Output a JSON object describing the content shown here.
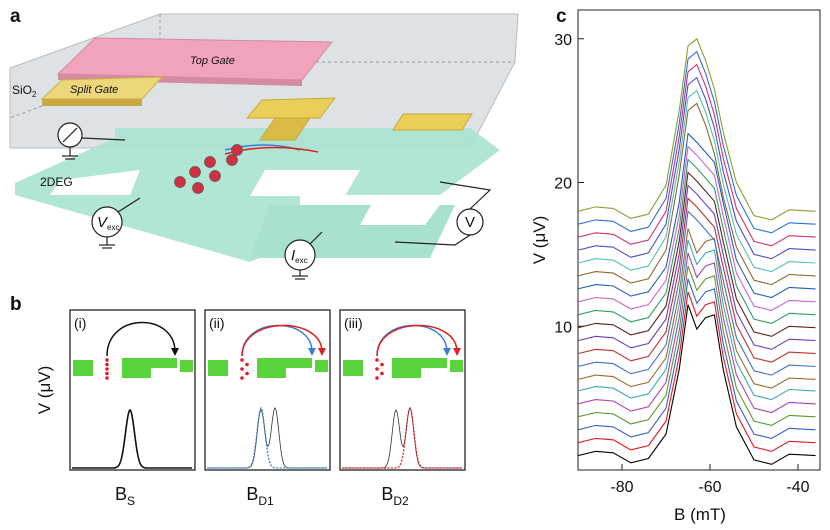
{
  "panel_a": {
    "label": "a",
    "top_gate": "Top Gate",
    "split_gate": "Split Gate",
    "oxide": {
      "main": "SiO",
      "sub": "2"
    },
    "channel": "2DEG",
    "v_exc": {
      "main": "V",
      "sub": "exc"
    },
    "i_exc": {
      "main": "I",
      "sub": "exc"
    },
    "voltmeter": "V"
  },
  "panel_b": {
    "label": "b",
    "y_label": "V (μV)",
    "panels": [
      {
        "tag": "(i)",
        "x_label": {
          "main": "B",
          "sub": "S"
        },
        "color": "#111111"
      },
      {
        "tag": "(ii)",
        "x_label": {
          "main": "B",
          "sub": "D1"
        },
        "color": "#3a7fd5"
      },
      {
        "tag": "(iii)",
        "x_label": {
          "main": "B",
          "sub": "D2"
        },
        "color": "#e02020"
      }
    ]
  },
  "chart_data": {
    "type": "line",
    "label": "c",
    "x_label": "B (mT)",
    "y_label": "V (μV)",
    "xlim": [
      -90,
      -35
    ],
    "ylim": [
      0,
      32
    ],
    "xticks": [
      -80,
      -60,
      -40
    ],
    "yticks": [
      10,
      20,
      30
    ],
    "x": [
      -90,
      -86,
      -82,
      -78,
      -74,
      -70,
      -67,
      -65,
      -63,
      -61,
      -59,
      -57,
      -54,
      -50,
      -46,
      -42,
      -36
    ],
    "series": [
      {
        "color": "#000000",
        "values": [
          1.0,
          1.3,
          1.2,
          0.5,
          0.8,
          2.5,
          7.0,
          11.5,
          9.8,
          10.6,
          10.8,
          7.0,
          3.0,
          0.7,
          0.4,
          1.1,
          1.0
        ]
      },
      {
        "color": "#e41a1c",
        "values": [
          1.9,
          2.2,
          2.1,
          1.4,
          1.7,
          3.4,
          7.9,
          12.4,
          10.7,
          11.5,
          11.7,
          7.9,
          3.9,
          1.6,
          1.3,
          2.0,
          1.9
        ]
      },
      {
        "color": "#3a5fcd",
        "values": [
          2.8,
          3.1,
          3.0,
          2.3,
          2.6,
          4.3,
          8.8,
          13.3,
          11.6,
          12.4,
          12.6,
          8.8,
          4.8,
          2.5,
          2.2,
          2.9,
          2.8
        ]
      },
      {
        "color": "#5a9a2a",
        "values": [
          3.7,
          4.0,
          3.9,
          3.2,
          3.5,
          5.2,
          9.7,
          14.2,
          12.5,
          13.3,
          13.5,
          9.7,
          5.7,
          3.4,
          3.1,
          3.8,
          3.7
        ]
      },
      {
        "color": "#b040b0",
        "values": [
          4.6,
          4.9,
          4.8,
          4.1,
          4.4,
          6.1,
          10.6,
          15.1,
          13.4,
          14.2,
          14.4,
          10.6,
          6.6,
          4.3,
          4.0,
          4.7,
          4.6
        ]
      },
      {
        "color": "#3aa8b8",
        "values": [
          5.5,
          5.8,
          5.7,
          5.0,
          5.3,
          7.0,
          11.5,
          16.0,
          14.3,
          15.1,
          15.3,
          11.5,
          7.5,
          5.2,
          4.9,
          5.6,
          5.5
        ]
      },
      {
        "color": "#9a6a30",
        "values": [
          6.3,
          6.6,
          6.5,
          5.8,
          6.1,
          7.8,
          12.3,
          16.8,
          15.1,
          15.9,
          16.1,
          12.3,
          8.3,
          6.0,
          5.7,
          6.4,
          6.3
        ]
      },
      {
        "color": "#4070d0",
        "values": [
          7.2,
          7.5,
          7.4,
          6.7,
          7.0,
          8.7,
          13.2,
          18.0,
          17.4,
          16.7,
          16.0,
          13.2,
          9.2,
          6.9,
          6.6,
          7.3,
          7.2
        ]
      },
      {
        "color": "#c03030",
        "values": [
          8.1,
          8.4,
          8.3,
          7.6,
          7.9,
          9.6,
          14.1,
          18.9,
          18.3,
          17.6,
          16.9,
          14.1,
          10.1,
          7.8,
          7.5,
          8.2,
          8.1
        ]
      },
      {
        "color": "#6a40c0",
        "values": [
          9.0,
          9.3,
          9.2,
          8.5,
          8.8,
          10.5,
          15.0,
          19.8,
          19.2,
          18.5,
          17.8,
          15.0,
          11.0,
          8.7,
          8.4,
          9.1,
          9.0
        ]
      },
      {
        "color": "#602020",
        "values": [
          9.9,
          10.2,
          10.1,
          9.4,
          9.7,
          11.4,
          15.9,
          20.7,
          20.1,
          19.4,
          18.7,
          15.9,
          11.9,
          9.6,
          9.3,
          10.0,
          9.9
        ]
      },
      {
        "color": "#30a060",
        "values": [
          10.8,
          11.1,
          11.0,
          10.3,
          10.6,
          12.3,
          16.8,
          21.6,
          21.0,
          20.3,
          19.6,
          16.8,
          12.8,
          10.5,
          10.2,
          10.9,
          10.8
        ]
      },
      {
        "color": "#d060d0",
        "values": [
          11.7,
          12.0,
          11.9,
          11.2,
          11.5,
          13.2,
          17.7,
          22.5,
          21.9,
          21.2,
          20.5,
          17.7,
          13.7,
          11.4,
          11.1,
          11.8,
          11.7
        ]
      },
      {
        "color": "#2060c0",
        "values": [
          12.6,
          12.9,
          12.8,
          12.1,
          12.4,
          14.1,
          18.6,
          23.4,
          22.8,
          22.1,
          21.4,
          18.6,
          14.6,
          12.3,
          12.0,
          12.7,
          12.6
        ]
      },
      {
        "color": "#8a6a30",
        "values": [
          13.5,
          13.8,
          13.7,
          13.0,
          13.3,
          15.3,
          20.5,
          25.0,
          25.5,
          24.0,
          22.0,
          19.0,
          15.5,
          13.2,
          12.9,
          13.6,
          13.5
        ]
      },
      {
        "color": "#50c0b0",
        "values": [
          14.4,
          14.7,
          14.6,
          13.9,
          14.2,
          16.2,
          21.4,
          25.9,
          26.4,
          24.9,
          22.9,
          19.9,
          16.4,
          14.1,
          13.8,
          14.5,
          14.4
        ]
      },
      {
        "color": "#4a50c8",
        "values": [
          15.3,
          15.6,
          15.5,
          14.8,
          15.1,
          17.1,
          22.3,
          26.8,
          27.3,
          25.8,
          23.8,
          20.8,
          17.3,
          15.0,
          14.7,
          15.4,
          15.3
        ]
      },
      {
        "color": "#d03070",
        "values": [
          16.2,
          16.5,
          16.4,
          15.7,
          16.0,
          18.0,
          23.2,
          27.7,
          28.2,
          26.7,
          24.7,
          21.7,
          18.2,
          15.9,
          15.6,
          16.3,
          16.2
        ]
      },
      {
        "color": "#3070d0",
        "values": [
          17.1,
          17.4,
          17.3,
          16.6,
          16.9,
          18.9,
          24.1,
          28.6,
          29.1,
          27.6,
          25.6,
          22.6,
          19.1,
          16.8,
          16.5,
          17.2,
          17.1
        ]
      },
      {
        "color": "#8aa030",
        "values": [
          18.0,
          18.3,
          18.2,
          17.5,
          17.8,
          19.8,
          25.0,
          29.5,
          30.0,
          28.5,
          26.5,
          23.5,
          20.0,
          17.7,
          17.4,
          18.1,
          18.0
        ]
      }
    ]
  }
}
